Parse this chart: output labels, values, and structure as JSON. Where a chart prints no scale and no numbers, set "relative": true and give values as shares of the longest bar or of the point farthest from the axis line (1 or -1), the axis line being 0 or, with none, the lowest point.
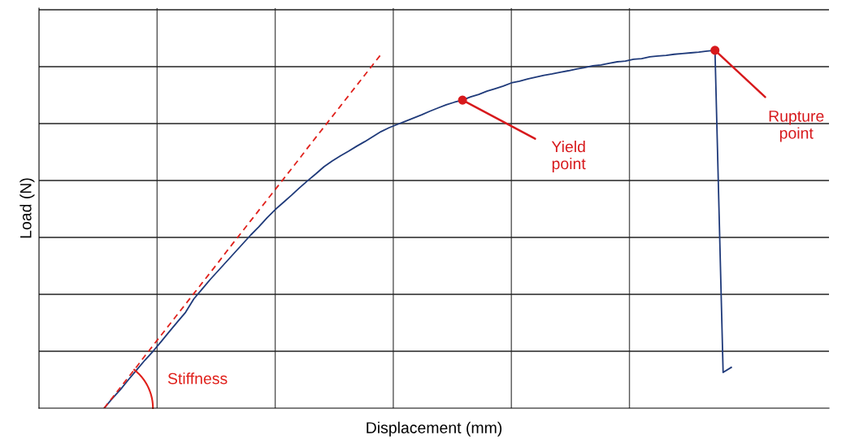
{
  "chart_data": {
    "type": "line",
    "relative": true,
    "grid": true,
    "tick_labels": false,
    "xlabel": "Displacement (mm)",
    "ylabel": "Load (N)",
    "categories": [
      null,
      null,
      null,
      null,
      null,
      null,
      null,
      null,
      null,
      null,
      null,
      null,
      null,
      null,
      null,
      null,
      null,
      null,
      null,
      null,
      null,
      null,
      null,
      null,
      null,
      null,
      null,
      null,
      null,
      null,
      null,
      null,
      null,
      null,
      null,
      null,
      null,
      null,
      null,
      null,
      null,
      null,
      null,
      null,
      null,
      null,
      null,
      null,
      null,
      null,
      null,
      null,
      null,
      null,
      null,
      null,
      null,
      null,
      null,
      null,
      null,
      null,
      null,
      null,
      null,
      null,
      null,
      null,
      null,
      null,
      null,
      null,
      null,
      null,
      null,
      null,
      null,
      null,
      null,
      null,
      null,
      null,
      null,
      null,
      null,
      null,
      null,
      null,
      null,
      null,
      null,
      null,
      null,
      null,
      null,
      null,
      null,
      null
    ],
    "series": [
      {
        "color": "#1f3a7a",
        "line_style": "solid",
        "marker": "none",
        "values": [
          null,
          null,
          null,
          null,
          null,
          null,
          null,
          null,
          0,
          0.027,
          0.052,
          0.08,
          0.107,
          0.134,
          0.159,
          0.186,
          0.214,
          0.241,
          0.268,
          0.305,
          0.332,
          0.359,
          0.384,
          0.409,
          0.434,
          0.459,
          0.484,
          0.507,
          0.532,
          0.555,
          0.575,
          0.595,
          0.616,
          0.636,
          0.655,
          0.675,
          0.691,
          0.705,
          0.718,
          0.732,
          0.745,
          0.759,
          0.773,
          0.784,
          0.793,
          0.802,
          0.811,
          0.82,
          0.83,
          0.839,
          0.848,
          0.855,
          0.861,
          0.87,
          0.877,
          0.886,
          0.893,
          0.9,
          0.909,
          0.914,
          0.92,
          0.925,
          0.93,
          0.934,
          0.939,
          0.943,
          0.948,
          0.952,
          0.957,
          0.959,
          0.964,
          0.968,
          0.97,
          0.975,
          0.977,
          0.982,
          0.984,
          0.986,
          0.989,
          0.991,
          0.993,
          0.995,
          0.998,
          1.0,
          0.1,
          0.114,
          null,
          null,
          null,
          null,
          null,
          null,
          null,
          null,
          null,
          null,
          null,
          null
        ]
      },
      {
        "color": "#e0201b",
        "line_style": "dashed",
        "marker": "none",
        "values": [
          null,
          null,
          null,
          null,
          null,
          null,
          null,
          null,
          0,
          0.029,
          0.058,
          0.087,
          0.116,
          0.146,
          0.175,
          0.204,
          0.233,
          0.262,
          0.291,
          0.32,
          0.349,
          0.378,
          0.407,
          0.437,
          0.466,
          0.495,
          0.524,
          0.553,
          0.582,
          0.611,
          0.64,
          0.669,
          0.698,
          0.728,
          0.757,
          0.786,
          0.815,
          0.844,
          0.873,
          0.902,
          0.931,
          0.96,
          0.989,
          null,
          null,
          null,
          null,
          null,
          null,
          null,
          null,
          null,
          null,
          null,
          null,
          null,
          null,
          null,
          null,
          null,
          null,
          null,
          null,
          null,
          null,
          null,
          null,
          null,
          null,
          null,
          null,
          null,
          null,
          null,
          null,
          null,
          null,
          null,
          null,
          null,
          null,
          null,
          null,
          null,
          null,
          null,
          null,
          null,
          null,
          null,
          null,
          null,
          null,
          null,
          null,
          null,
          null,
          null
        ]
      }
    ],
    "annotations": [
      "Yield point",
      "Rupture point",
      "Stiffness"
    ]
  }
}
